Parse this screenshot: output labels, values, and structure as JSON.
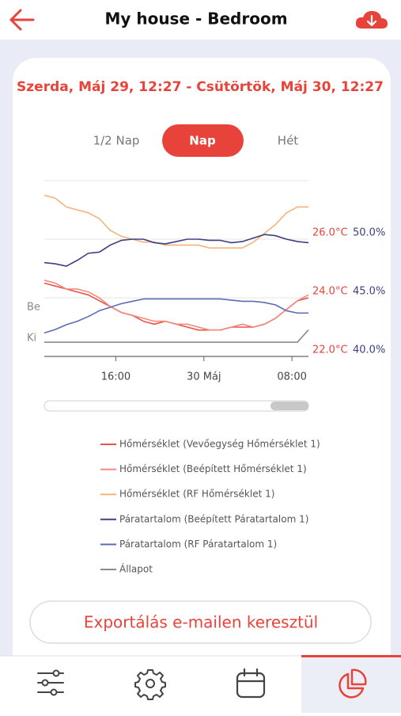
{
  "header": {
    "title": "My house - Bedroom"
  },
  "date_range": "Szerda, Máj 29, 12:27 - Csütörtök, Máj 30, 12:27",
  "tabs": [
    "1/2 Nap",
    "Nap",
    "Hét"
  ],
  "active_tab": 1,
  "chart_data": {
    "type": "line",
    "x": [
      9.5,
      10.5,
      11.5,
      12.5,
      13.5,
      14.5,
      15.5,
      16.5,
      17.5,
      18.5,
      19.5,
      20.5,
      21.5,
      22.5,
      23.5,
      24.5,
      25.5,
      26.5,
      27.5,
      28.5,
      29.5,
      30.5,
      31.5,
      32.5,
      33.5
    ],
    "xlim": [
      9.5,
      33.5
    ],
    "xticks": [
      {
        "value": 16,
        "label": "16:00"
      },
      {
        "value": 24,
        "label": "30 Máj"
      },
      {
        "value": 32,
        "label": "08:00"
      }
    ],
    "ylim": [
      22,
      28
    ],
    "yticks": [
      {
        "value": 26,
        "label": "26.0°C"
      },
      {
        "value": 24,
        "label": "24.0°C"
      },
      {
        "value": 22,
        "label": "22.0°C"
      }
    ],
    "y2lim": [
      40,
      55
    ],
    "y2ticks": [
      {
        "value": 50,
        "label": "50.0%"
      },
      {
        "value": 45,
        "label": "45.0%"
      },
      {
        "value": 40,
        "label": "40.0%"
      }
    ],
    "y3lim": [
      -0.46,
      5.23
    ],
    "y3ticks": [
      {
        "value": 1,
        "label": "Be"
      },
      {
        "value": 0,
        "label": "Ki"
      }
    ],
    "grid": true,
    "series": [
      {
        "name": "Hőmérséklet (Vevőegység Hőmérséklet 1)",
        "color": "#e8534a",
        "values": [
          24.5,
          24.4,
          24.3,
          24.2,
          24.1,
          23.9,
          23.7,
          23.5,
          23.4,
          23.2,
          23.1,
          23.2,
          23.1,
          23.0,
          22.9,
          22.9,
          22.9,
          23.0,
          23.0,
          23.0,
          23.1,
          23.3,
          23.6,
          23.9,
          24.0
        ]
      },
      {
        "name": "Hőmérséklet (Beépített Hőmérséklet 1)",
        "color": "#f28a80",
        "values": [
          24.6,
          24.5,
          24.3,
          24.3,
          24.2,
          24.0,
          23.7,
          23.5,
          23.4,
          23.3,
          23.2,
          23.2,
          23.1,
          23.1,
          23.0,
          22.9,
          22.9,
          23.0,
          23.1,
          23.0,
          23.1,
          23.3,
          23.6,
          23.9,
          24.1
        ]
      },
      {
        "name": "Hőmérséklet (RF Hőmérséklet 1)",
        "color": "#f7b27c",
        "values": [
          27.5,
          27.4,
          27.1,
          27.0,
          26.9,
          26.7,
          26.3,
          26.1,
          26.0,
          25.9,
          25.9,
          25.8,
          25.8,
          25.8,
          25.8,
          25.7,
          25.7,
          25.7,
          25.7,
          25.9,
          26.2,
          26.5,
          26.9,
          27.1,
          27.1
        ]
      },
      {
        "name": "Páratartalom (Beépített Páratartalom 1)",
        "color": "#3e4080",
        "axis": "y2",
        "values": [
          48.0,
          47.9,
          47.7,
          48.2,
          48.8,
          48.9,
          49.5,
          49.9,
          50.0,
          50.0,
          49.7,
          49.6,
          49.8,
          50.0,
          50.0,
          49.9,
          49.9,
          49.7,
          49.8,
          50.1,
          50.4,
          50.3,
          50.0,
          49.8,
          49.7
        ]
      },
      {
        "name": "Páratartalom (RF Páratartalom 1)",
        "color": "#5b6db3",
        "axis": "y2",
        "values": [
          42.0,
          42.3,
          42.7,
          43.0,
          43.4,
          43.9,
          44.2,
          44.5,
          44.7,
          44.9,
          44.9,
          44.9,
          44.9,
          44.9,
          44.9,
          44.9,
          44.9,
          44.8,
          44.7,
          44.7,
          44.6,
          44.4,
          43.9,
          43.7,
          43.7
        ]
      },
      {
        "name": "Állapot",
        "color": "#8a8a8a",
        "axis": "y3",
        "values": [
          0,
          0,
          0,
          0,
          0,
          0,
          0,
          0,
          0,
          0,
          0,
          0,
          0,
          0,
          0,
          0,
          0,
          0,
          0,
          0,
          0,
          0,
          0,
          0,
          0.4
        ]
      }
    ]
  },
  "export_button": "Exportálás e-mailen keresztül"
}
